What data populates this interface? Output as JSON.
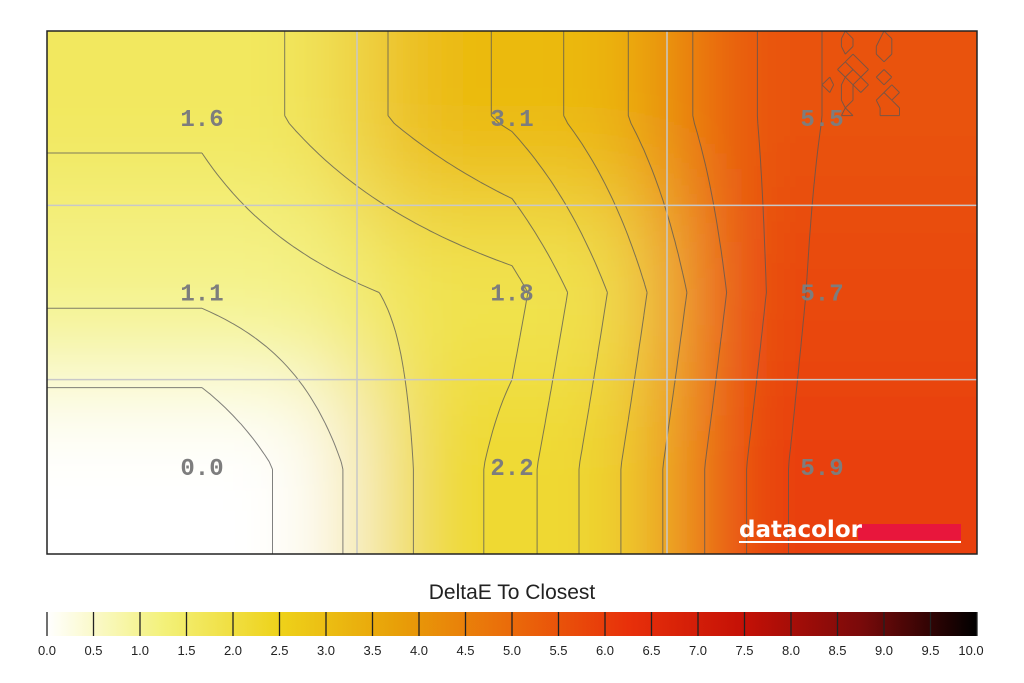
{
  "chart_data": {
    "type": "heatmap",
    "title": "",
    "colorbar_title": "DeltaE To Closest",
    "grid": {
      "rows": 3,
      "cols": 3,
      "gridlines": true
    },
    "cells": [
      {
        "row": 0,
        "col": 0,
        "value": 1.6,
        "label": "1.6"
      },
      {
        "row": 0,
        "col": 1,
        "value": 3.1,
        "label": "3.1"
      },
      {
        "row": 0,
        "col": 2,
        "value": 5.5,
        "label": "5.5"
      },
      {
        "row": 1,
        "col": 0,
        "value": 1.1,
        "label": "1.1"
      },
      {
        "row": 1,
        "col": 1,
        "value": 1.8,
        "label": "1.8"
      },
      {
        "row": 1,
        "col": 2,
        "value": 5.7,
        "label": "5.7"
      },
      {
        "row": 2,
        "col": 0,
        "value": 0.0,
        "label": "0.0"
      },
      {
        "row": 2,
        "col": 1,
        "value": 2.2,
        "label": "2.2"
      },
      {
        "row": 2,
        "col": 2,
        "value": 5.9,
        "label": "5.9"
      }
    ],
    "colorbar": {
      "min": 0,
      "max": 10,
      "step": 0.5,
      "tick_labels": [
        "0.0",
        "0.5",
        "1.0",
        "1.5",
        "2.0",
        "2.5",
        "3.0",
        "3.5",
        "4.0",
        "4.5",
        "5.0",
        "5.5",
        "6.0",
        "6.5",
        "7.0",
        "7.5",
        "8.0",
        "8.5",
        "9.0",
        "9.5",
        "10.0"
      ],
      "colors": [
        "#ffffff",
        "#f3f17a",
        "#eed21a",
        "#e8a008",
        "#ea6a0a",
        "#e8300a",
        "#c41006",
        "#7a0a0a",
        "#000000"
      ]
    },
    "contour_interval": 0.5
  },
  "brand": {
    "text": "datacolor",
    "accent": "#e8163c"
  }
}
